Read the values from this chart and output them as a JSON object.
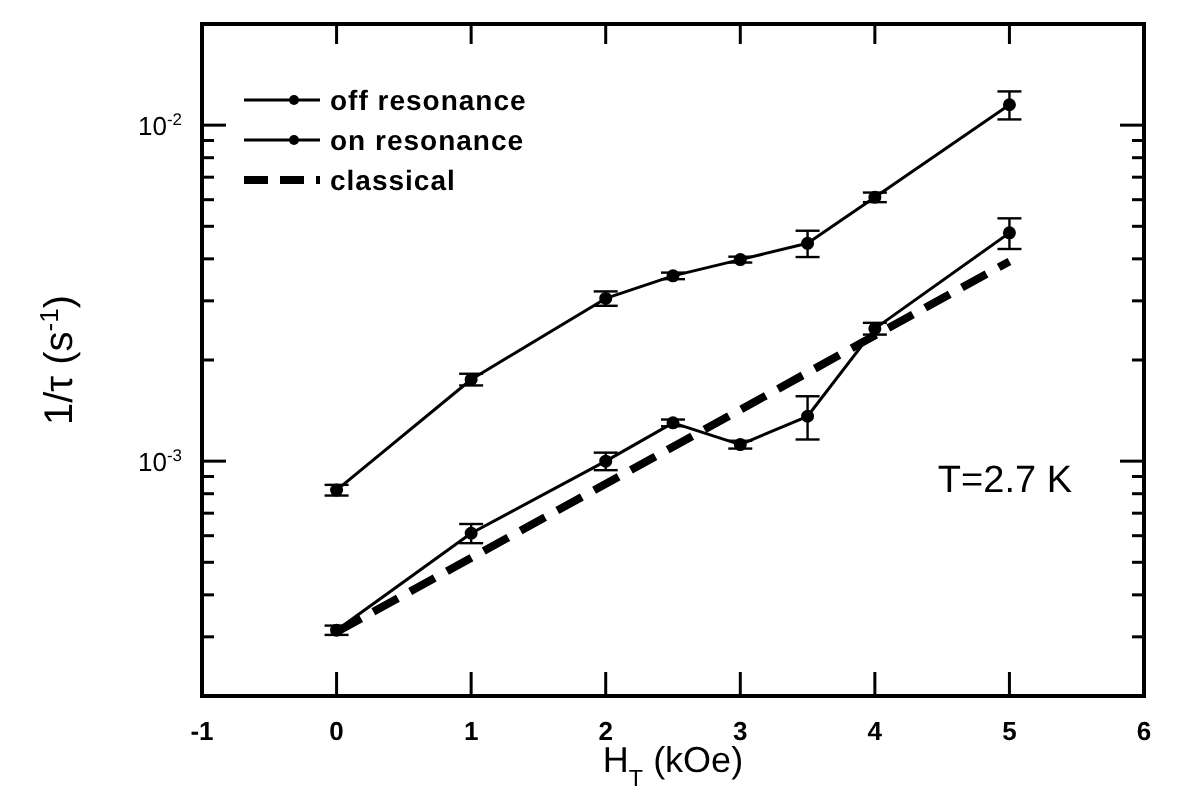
{
  "chart_data": {
    "type": "line",
    "xlabel": "H$_{T}$ (kOe)",
    "ylabel": "1/τ (s$^{-1}$)",
    "log": "y",
    "xlim": [
      -1,
      6
    ],
    "xticks": [
      -1,
      0,
      1,
      2,
      3,
      4,
      5,
      6
    ],
    "ylim": [
      0.0002,
      0.02
    ],
    "yticks": [
      {
        "value": 0.0002,
        "label": null
      },
      {
        "value": 0.0003,
        "label": null
      },
      {
        "value": 0.0004,
        "label": null
      },
      {
        "value": 0.0005,
        "label": null
      },
      {
        "value": 0.0006,
        "label": null
      },
      {
        "value": 0.0007,
        "label": null
      },
      {
        "value": 0.0008,
        "label": null
      },
      {
        "value": 0.0009,
        "label": null
      },
      {
        "value": 0.001,
        "label": "10$^{-3}$"
      },
      {
        "value": 0.002,
        "label": null
      },
      {
        "value": 0.003,
        "label": null
      },
      {
        "value": 0.004,
        "label": null
      },
      {
        "value": 0.005,
        "label": null
      },
      {
        "value": 0.006,
        "label": null
      },
      {
        "value": 0.007,
        "label": null
      },
      {
        "value": 0.008,
        "label": null
      },
      {
        "value": 0.009,
        "label": null
      },
      {
        "value": 0.01,
        "label": "10$^{-2}$"
      },
      {
        "value": 0.02,
        "label": null
      }
    ],
    "grid": false,
    "legend": "top left",
    "marker": "circle",
    "line_style": "solid",
    "series": [
      {
        "name": "off resonance",
        "color": "#000000",
        "x": [
          0,
          1,
          2,
          2.5,
          3,
          3.5,
          4,
          5
        ],
        "values": [
          0.00082,
          0.00175,
          0.00305,
          0.00356,
          0.00398,
          0.00445,
          0.0061,
          0.0115
        ],
        "errors": [
          3e-05,
          7e-05,
          0.00015,
          8e-05,
          8e-05,
          0.0004,
          0.0002,
          0.0011
        ]
      },
      {
        "name": "on resonance",
        "color": "#000000",
        "x": [
          0,
          1,
          2,
          2.5,
          3,
          3.5,
          4,
          5
        ],
        "values": [
          0.000314,
          0.00061,
          0.001,
          0.0013,
          0.00112,
          0.00136,
          0.00248,
          0.00478
        ],
        "errors": [
          1e-05,
          4e-05,
          6e-05,
          3e-05,
          3e-05,
          0.0002,
          0.0001,
          0.0005
        ]
      },
      {
        "name": "classical",
        "color": "#000000",
        "x": [
          0,
          5
        ],
        "values": [
          0.00031,
          0.00393
        ],
        "marker": "none",
        "line_style": "dashed"
      }
    ],
    "annotations": [
      "T=2.7 K"
    ]
  }
}
